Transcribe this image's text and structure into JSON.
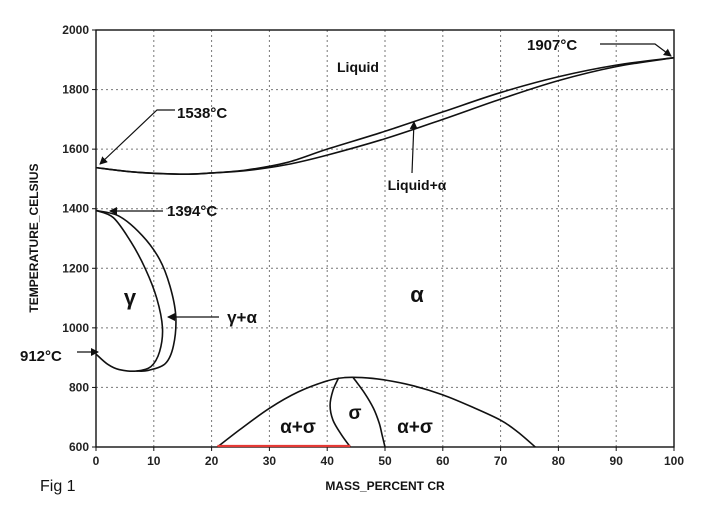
{
  "figure_label": "Fig 1",
  "chart_data": {
    "type": "line",
    "title": "",
    "xlabel": "MASS_PERCENT CR",
    "ylabel": "TEMPERATURE_CELSIUS",
    "xlim": [
      0,
      100
    ],
    "ylim": [
      600,
      2000
    ],
    "x_ticks": [
      "0",
      "10",
      "20",
      "30",
      "40",
      "50",
      "60",
      "70",
      "80",
      "90",
      "100"
    ],
    "y_ticks": [
      "600",
      "800",
      "1000",
      "1200",
      "1400",
      "1600",
      "1800",
      "2000"
    ],
    "grid": true,
    "series": [
      {
        "values": [
          [
            0,
            1538
          ],
          [
            5,
            1526
          ],
          [
            10,
            1519
          ],
          [
            16,
            1516
          ],
          [
            20,
            1520
          ],
          [
            26,
            1530
          ],
          [
            33,
            1555
          ],
          [
            40,
            1600
          ],
          [
            50,
            1660
          ],
          [
            60,
            1725
          ],
          [
            70,
            1790
          ],
          [
            80,
            1843
          ],
          [
            90,
            1882
          ],
          [
            100,
            1907
          ]
        ]
      },
      {
        "values": [
          [
            0,
            1538
          ],
          [
            5,
            1526
          ],
          [
            10,
            1519
          ],
          [
            16,
            1516
          ],
          [
            20,
            1520
          ],
          [
            26,
            1528
          ],
          [
            33,
            1548
          ],
          [
            40,
            1580
          ],
          [
            50,
            1635
          ],
          [
            60,
            1700
          ],
          [
            70,
            1768
          ],
          [
            80,
            1830
          ],
          [
            90,
            1877
          ],
          [
            100,
            1907
          ]
        ]
      },
      {
        "values": [
          [
            0,
            1394
          ],
          [
            3,
            1370
          ],
          [
            6,
            1290
          ],
          [
            8.5,
            1200
          ],
          [
            10.5,
            1100
          ],
          [
            11.5,
            1000
          ],
          [
            11,
            920
          ],
          [
            9.5,
            870
          ],
          [
            7,
            855
          ],
          [
            4,
            860
          ],
          [
            2,
            878
          ],
          [
            0,
            912
          ]
        ]
      },
      {
        "values": [
          [
            0,
            1394
          ],
          [
            4,
            1375
          ],
          [
            8,
            1310
          ],
          [
            11,
            1230
          ],
          [
            12.8,
            1140
          ],
          [
            13.8,
            1040
          ],
          [
            13.4,
            940
          ],
          [
            12,
            880
          ],
          [
            9,
            857
          ],
          [
            7,
            855
          ]
        ]
      },
      {
        "values": [
          [
            21,
            600
          ],
          [
            25,
            660
          ],
          [
            30,
            730
          ],
          [
            35,
            785
          ],
          [
            40,
            822
          ],
          [
            43,
            833
          ],
          [
            46,
            833
          ],
          [
            50,
            825
          ],
          [
            55,
            805
          ],
          [
            60,
            775
          ],
          [
            65,
            735
          ],
          [
            70,
            690
          ],
          [
            73,
            650
          ],
          [
            76,
            600
          ]
        ]
      },
      {
        "values": [
          [
            42,
            833
          ],
          [
            41,
            790
          ],
          [
            40.5,
            740
          ],
          [
            41,
            690
          ],
          [
            42.5,
            640
          ],
          [
            44,
            600
          ]
        ]
      },
      {
        "values": [
          [
            44.5,
            833
          ],
          [
            46.5,
            780
          ],
          [
            48,
            730
          ],
          [
            49,
            680
          ],
          [
            49.5,
            640
          ],
          [
            50,
            600
          ]
        ]
      }
    ],
    "baseline_segment": {
      "x": [
        21,
        44
      ],
      "y": 600,
      "color": "#e53935"
    },
    "region_labels": {
      "liquid": "Liquid",
      "liquid_alpha": "Liquid+α",
      "alpha": "α",
      "gamma": "γ",
      "gamma_alpha": "γ+α",
      "alpha_sigma_left": "α+σ",
      "sigma": "σ",
      "alpha_sigma_right": "α+σ"
    },
    "annotations": [
      {
        "text": "1538°C",
        "x": 0,
        "y": 1538
      },
      {
        "text": "1394°C",
        "x": 0,
        "y": 1394
      },
      {
        "text": "912°C",
        "x": 0,
        "y": 912
      },
      {
        "text": "1907°C",
        "x": 100,
        "y": 1907
      }
    ]
  }
}
